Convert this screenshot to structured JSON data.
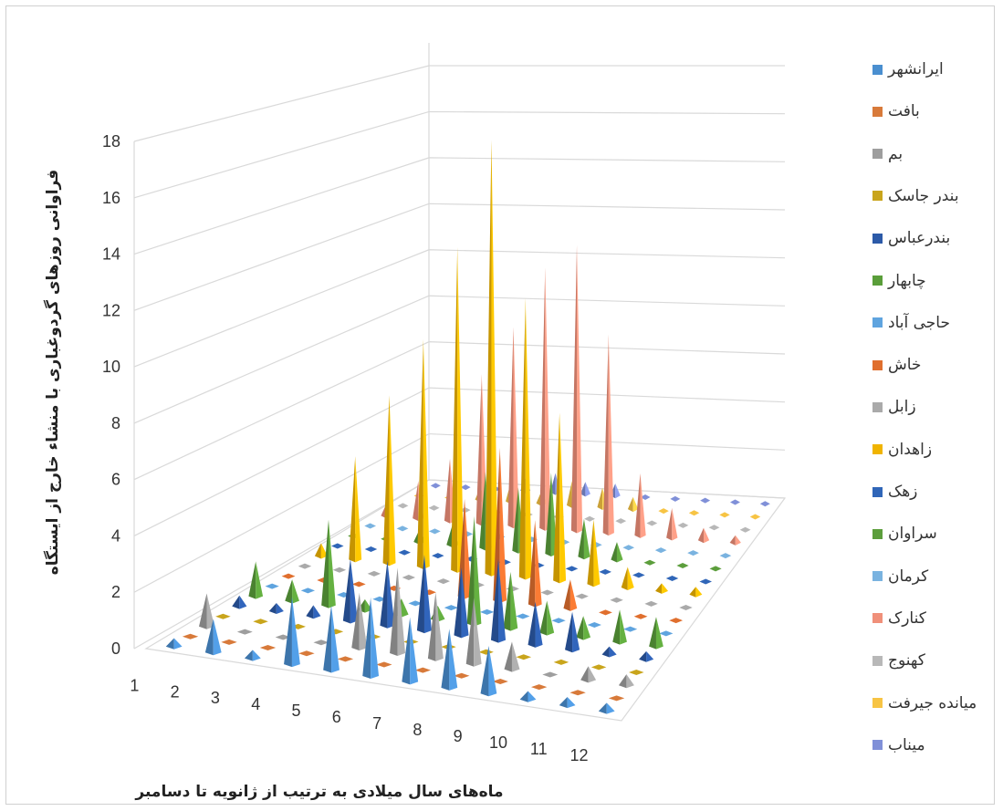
{
  "chart_data": {
    "type": "bar3d",
    "ylabel": "فراوانی روزهای گردوغباری با منشاء خارج از ایستگاه",
    "xlabel": "ماه‌های سال میلادی به ترتیب از ژانویه تا دسامبر",
    "ylim": [
      0,
      18
    ],
    "y_ticks": [
      "0",
      "2",
      "4",
      "6",
      "8",
      "10",
      "12",
      "14",
      "16",
      "18"
    ],
    "categories": [
      "1",
      "2",
      "3",
      "4",
      "5",
      "6",
      "7",
      "8",
      "9",
      "10",
      "11",
      "12"
    ],
    "grid": true,
    "legend": "right",
    "series": [
      {
        "name": "ایرانشهر",
        "color": "#4a8fd0",
        "values": [
          0.3,
          1.2,
          0.3,
          2.4,
          2.3,
          2.8,
          2.3,
          2.1,
          1.7,
          0.3,
          0.3,
          0.3
        ]
      },
      {
        "name": "بافت",
        "color": "#d87a3a",
        "values": [
          0.2,
          0.2,
          0.2,
          0.2,
          0.2,
          0.2,
          0.2,
          0.2,
          0.2,
          0.2,
          0.2,
          0.2
        ]
      },
      {
        "name": "بم",
        "color": "#9e9e9e",
        "values": [
          1.2,
          0.2,
          0.2,
          0.2,
          2.0,
          3.1,
          2.4,
          2.4,
          1.0,
          0.2,
          0.5,
          0.4
        ]
      },
      {
        "name": "بندر جاسک",
        "color": "#c9a51c",
        "values": [
          0.2,
          0.2,
          0.2,
          0.2,
          0.2,
          0.2,
          0.2,
          0.2,
          0.2,
          0.2,
          0.2,
          0.2
        ]
      },
      {
        "name": "بندرعباس",
        "color": "#2c5aa8",
        "values": [
          0.4,
          0.3,
          0.4,
          2.3,
          2.4,
          2.8,
          2.5,
          3.0,
          1.6,
          1.4,
          0.3,
          0.3
        ]
      },
      {
        "name": "چابهار",
        "color": "#5a9e3a",
        "values": [
          1.3,
          0.8,
          3.2,
          0.4,
          0.6,
          0.5,
          4.0,
          2.1,
          1.2,
          0.8,
          1.2,
          1.1
        ]
      },
      {
        "name": "حاجی آباد",
        "color": "#5fa4df",
        "values": [
          0.2,
          0.2,
          0.2,
          0.2,
          0.2,
          0.2,
          0.2,
          0.2,
          0.2,
          0.2,
          0.2,
          0.2
        ]
      },
      {
        "name": "خاش",
        "color": "#e06f2e",
        "values": [
          0.2,
          0.2,
          0.2,
          0.2,
          0.2,
          3.7,
          5.8,
          3.2,
          1.1,
          0.2,
          0.2,
          0.2
        ]
      },
      {
        "name": "زابل",
        "color": "#aaaaaa",
        "values": [
          0.2,
          0.2,
          0.2,
          0.2,
          0.2,
          0.2,
          0.2,
          0.2,
          0.2,
          0.2,
          0.2,
          0.2
        ]
      },
      {
        "name": "زاهدان",
        "color": "#f0b400",
        "values": [
          0.5,
          4.0,
          6.5,
          8.8,
          12.5,
          16.8,
          10.8,
          6.5,
          2.5,
          0.8,
          0.3,
          0.3
        ]
      },
      {
        "name": "زهک",
        "color": "#3066b8",
        "values": [
          0.2,
          0.2,
          0.2,
          0.2,
          0.2,
          0.2,
          0.2,
          0.2,
          0.2,
          0.2,
          0.2,
          0.2
        ]
      },
      {
        "name": "سراوان",
        "color": "#5c9e3c",
        "values": [
          0.2,
          0.2,
          0.5,
          0.8,
          3.0,
          2.5,
          3.2,
          1.5,
          0.7,
          0.2,
          0.2,
          0.2
        ]
      },
      {
        "name": "کرمان",
        "color": "#7ab3e0",
        "values": [
          0.2,
          0.2,
          0.2,
          0.2,
          0.2,
          0.2,
          0.2,
          0.2,
          0.2,
          0.2,
          0.2,
          0.2
        ]
      },
      {
        "name": "کنارک",
        "color": "#f0907a",
        "values": [
          0.5,
          1.5,
          2.5,
          6.0,
          8.0,
          10.5,
          11.5,
          8.0,
          2.5,
          1.2,
          0.5,
          0.3
        ]
      },
      {
        "name": "کهنوج",
        "color": "#b8b8b8",
        "values": [
          0.2,
          0.2,
          0.2,
          0.2,
          0.2,
          0.2,
          0.2,
          0.2,
          0.2,
          0.2,
          0.2,
          0.2
        ]
      },
      {
        "name": "میانده جیرفت",
        "color": "#f7c444",
        "values": [
          0.3,
          0.3,
          0.5,
          0.8,
          0.5,
          1.0,
          0.8,
          0.5,
          0.3,
          0.3,
          0.2,
          0.2
        ]
      },
      {
        "name": "میناب",
        "color": "#8090d8",
        "values": [
          0.3,
          0.3,
          0.3,
          0.5,
          0.8,
          0.5,
          0.5,
          0.3,
          0.3,
          0.3,
          0.2,
          0.2
        ]
      }
    ]
  }
}
